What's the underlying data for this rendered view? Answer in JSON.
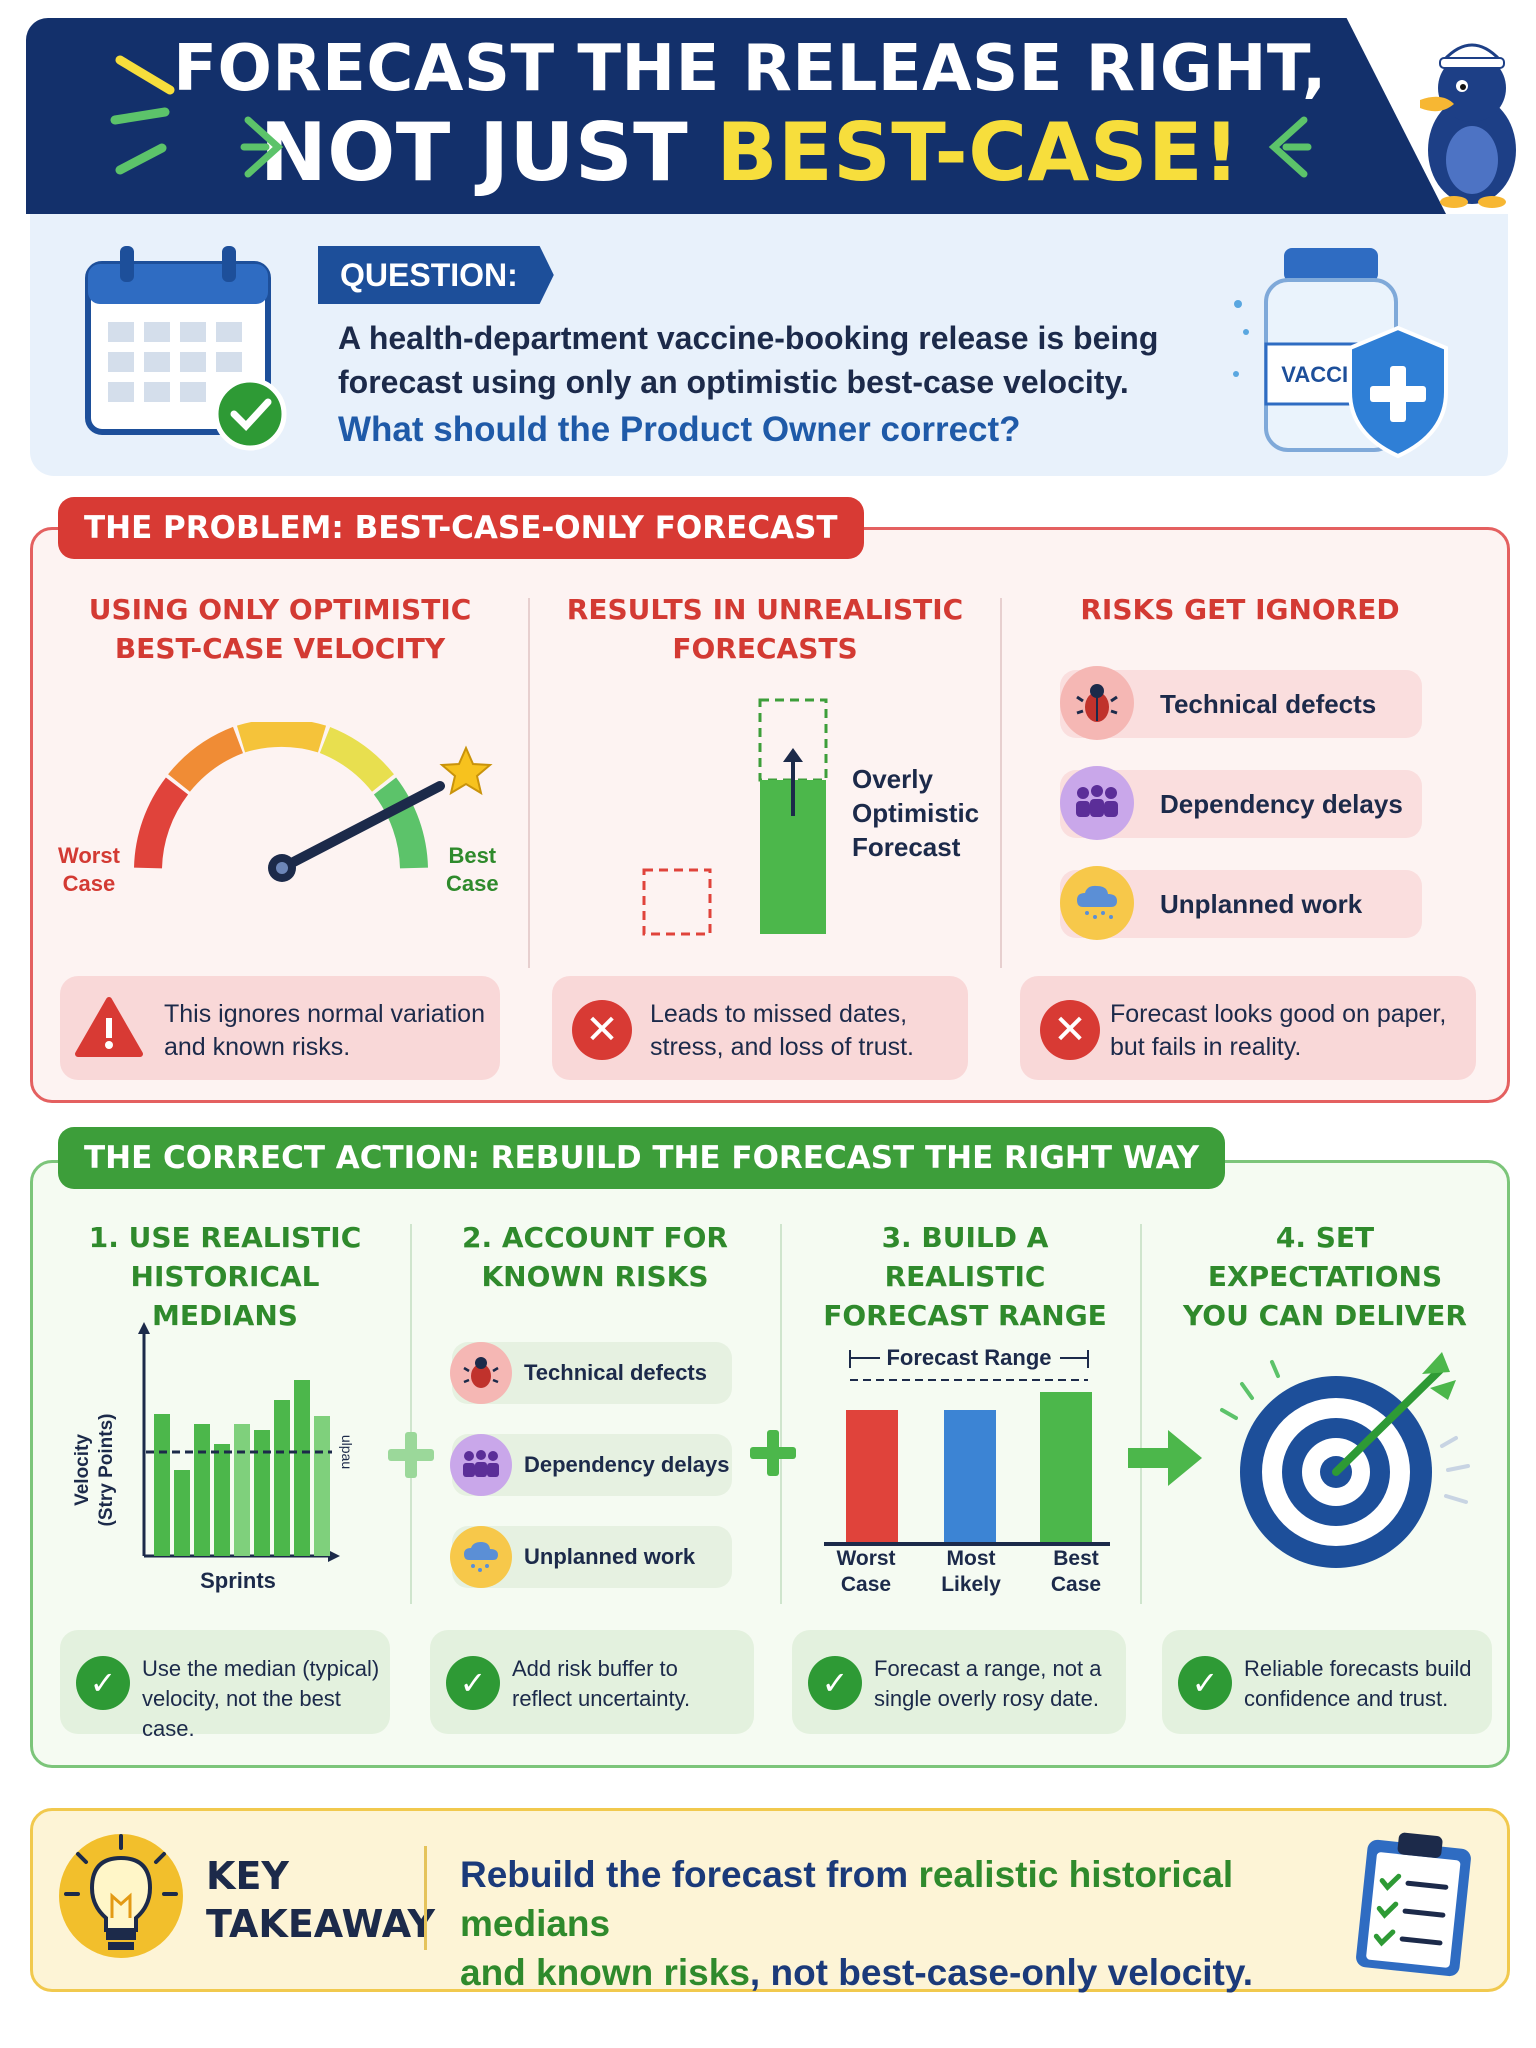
{
  "header": {
    "title_line1": "FORECAST THE RELEASE RIGHT,",
    "title_line2_plain": "NOT JUST ",
    "title_line2_highlight": "BEST-CASE!"
  },
  "question": {
    "label": "QUESTION:",
    "text": "A health-department vaccine-booking release is being forecast using only an optimistic best-case velocity.",
    "ask": "What should the Product Owner correct?",
    "vaccine_label": "VACCINE"
  },
  "problem": {
    "tab": "THE PROBLEM: BEST-CASE-ONLY FORECAST",
    "col1": {
      "heading_l1": "USING ONLY OPTIMISTIC",
      "heading_l2": "BEST-CASE VELOCITY",
      "worst_l1": "Worst",
      "worst_l2": "Case",
      "best_l1": "Best",
      "best_l2": "Case",
      "note_l1": "This ignores normal variation",
      "note_l2": "and known risks."
    },
    "col2": {
      "heading_l1": "RESULTS IN UNREALISTIC",
      "heading_l2": "FORECASTS",
      "label_l1": "Overly",
      "label_l2": "Optimistic",
      "label_l3": "Forecast",
      "note_l1": "Leads to missed dates,",
      "note_l2": "stress, and loss of trust."
    },
    "col3": {
      "heading": "RISKS GET IGNORED",
      "risks": [
        "Technical defects",
        "Dependency delays",
        "Unplanned work"
      ],
      "note_l1": "Forecast looks good on paper,",
      "note_l2": "but fails in reality."
    }
  },
  "action": {
    "tab": "THE CORRECT ACTION: REBUILD THE FORECAST THE RIGHT WAY",
    "step1": {
      "heading_l1": "1. USE REALISTIC",
      "heading_l2": "HISTORICAL MEDIANS",
      "y_label_l1": "Velocity",
      "y_label_l2": "(Stry Points)",
      "x_label": "Sprints",
      "median_label": "ulpau",
      "note_l1": "Use the median (typical)",
      "note_l2": "velocity, not the best case."
    },
    "step2": {
      "heading_l1": "2. ACCOUNT FOR",
      "heading_l2": "KNOWN RISKS",
      "risks": [
        "Technical defects",
        "Dependency delays",
        "Unplanned work"
      ],
      "note_l1": "Add risk buffer to",
      "note_l2": "reflect uncertainty."
    },
    "step3": {
      "heading_l1": "3. BUILD A REALISTIC",
      "heading_l2": "FORECAST RANGE",
      "range_label": "Forecast Range",
      "bars": [
        {
          "l1": "Worst",
          "l2": "Case"
        },
        {
          "l1": "Most",
          "l2": "Likely"
        },
        {
          "l1": "Best",
          "l2": "Case"
        }
      ],
      "note_l1": "Forecast a range, not a",
      "note_l2": "single overly rosy date."
    },
    "step4": {
      "heading_l1": "4. SET EXPECTATIONS",
      "heading_l2": "YOU CAN DELIVER",
      "note_l1": "Reliable forecasts build",
      "note_l2": "confidence and trust."
    }
  },
  "takeaway": {
    "label_l1": "KEY",
    "label_l2": "TAKEAWAY",
    "t1": "Rebuild the forecast from ",
    "t2": "realistic historical medians",
    "t3": "and known risks",
    "t4": ", not best-case-only velocity."
  },
  "colors": {
    "navy": "#13306b",
    "yellow": "#f7de3c",
    "red": "#d83a34",
    "green": "#3d9e3a",
    "blue": "#1d4f9a"
  }
}
